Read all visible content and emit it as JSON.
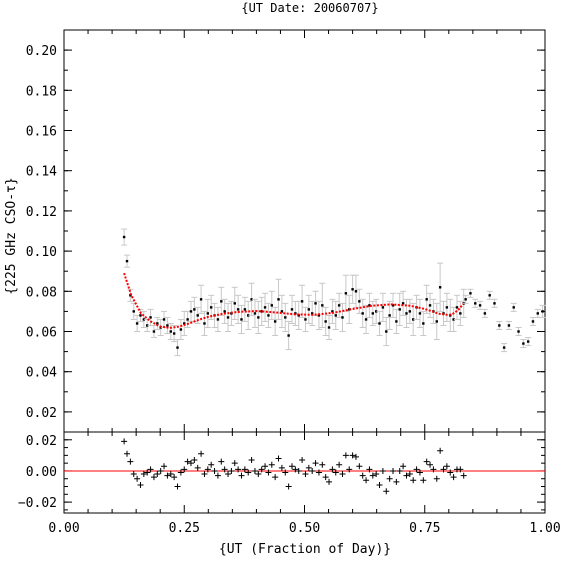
{
  "chart_data": [
    {
      "type": "scatter",
      "title": "{UT Date: 20060707}",
      "xlabel": "",
      "ylabel": "{225 GHz CSO-τ}",
      "xlim": [
        0.0,
        1.0
      ],
      "ylim": [
        0.01,
        0.21
      ],
      "yticks": [
        "0.02",
        "0.04",
        "0.06",
        "0.08",
        "0.10",
        "0.12",
        "0.14",
        "0.16",
        "0.18",
        "0.20"
      ],
      "grid": false,
      "colors": {
        "points": "#000000",
        "errorbars": "#c8c8c8",
        "fit": "#ff0000"
      },
      "series": [
        {
          "x": [
            0.125,
            0.131,
            0.138,
            0.145,
            0.152,
            0.159,
            0.166,
            0.173,
            0.18,
            0.187,
            0.194,
            0.201,
            0.208,
            0.215,
            0.222,
            0.229,
            0.236,
            0.243,
            0.25,
            0.257,
            0.264,
            0.271,
            0.278,
            0.285,
            0.292,
            0.299,
            0.306,
            0.313,
            0.32,
            0.327,
            0.334,
            0.341,
            0.348,
            0.355,
            0.362,
            0.369,
            0.376,
            0.383,
            0.39,
            0.397,
            0.404,
            0.411,
            0.418,
            0.425,
            0.432,
            0.439,
            0.446,
            0.453,
            0.46,
            0.467,
            0.474,
            0.481,
            0.488,
            0.495,
            0.502,
            0.509,
            0.516,
            0.523,
            0.53,
            0.537,
            0.544,
            0.551,
            0.558,
            0.565,
            0.572,
            0.579,
            0.586,
            0.593,
            0.6,
            0.607,
            0.614,
            0.621,
            0.628,
            0.635,
            0.642,
            0.649,
            0.656,
            0.663,
            0.67,
            0.677,
            0.684,
            0.691,
            0.698,
            0.705,
            0.712,
            0.719,
            0.726,
            0.733,
            0.74,
            0.747,
            0.754,
            0.761,
            0.768,
            0.775,
            0.782,
            0.789,
            0.796,
            0.803,
            0.81,
            0.817,
            0.824,
            0.831
          ],
          "y": [
            0.107,
            0.095,
            0.078,
            0.07,
            0.064,
            0.068,
            0.066,
            0.063,
            0.067,
            0.06,
            0.064,
            0.062,
            0.066,
            0.063,
            0.06,
            0.059,
            0.052,
            0.061,
            0.064,
            0.066,
            0.07,
            0.071,
            0.068,
            0.076,
            0.064,
            0.069,
            0.072,
            0.068,
            0.066,
            0.075,
            0.07,
            0.067,
            0.069,
            0.074,
            0.071,
            0.066,
            0.071,
            0.068,
            0.076,
            0.069,
            0.067,
            0.07,
            0.072,
            0.068,
            0.073,
            0.065,
            0.076,
            0.07,
            0.067,
            0.058,
            0.071,
            0.069,
            0.068,
            0.075,
            0.066,
            0.071,
            0.069,
            0.074,
            0.068,
            0.073,
            0.065,
            0.062,
            0.07,
            0.068,
            0.073,
            0.067,
            0.079,
            0.071,
            0.081,
            0.08,
            0.075,
            0.069,
            0.066,
            0.073,
            0.069,
            0.07,
            0.064,
            0.072,
            0.06,
            0.068,
            0.073,
            0.065,
            0.071,
            0.074,
            0.069,
            0.07,
            0.066,
            0.072,
            0.069,
            0.064,
            0.076,
            0.073,
            0.07,
            0.065,
            0.082,
            0.069,
            0.072,
            0.068,
            0.066,
            0.072,
            0.069,
            0.074
          ],
          "yerr": [
            0.004,
            0.003,
            0.003,
            0.004,
            0.004,
            0.003,
            0.004,
            0.003,
            0.004,
            0.003,
            0.003,
            0.004,
            0.004,
            0.004,
            0.004,
            0.004,
            0.004,
            0.005,
            0.006,
            0.004,
            0.005,
            0.006,
            0.004,
            0.007,
            0.006,
            0.007,
            0.006,
            0.006,
            0.006,
            0.007,
            0.006,
            0.007,
            0.006,
            0.008,
            0.007,
            0.007,
            0.006,
            0.007,
            0.008,
            0.007,
            0.008,
            0.007,
            0.007,
            0.006,
            0.007,
            0.007,
            0.01,
            0.008,
            0.007,
            0.007,
            0.007,
            0.006,
            0.007,
            0.008,
            0.006,
            0.007,
            0.006,
            0.006,
            0.007,
            0.011,
            0.007,
            0.006,
            0.006,
            0.007,
            0.006,
            0.007,
            0.009,
            0.007,
            0.007,
            0.008,
            0.006,
            0.007,
            0.007,
            0.006,
            0.006,
            0.006,
            0.006,
            0.007,
            0.007,
            0.007,
            0.006,
            0.006,
            0.008,
            0.006,
            0.007,
            0.006,
            0.008,
            0.006,
            0.007,
            0.006,
            0.007,
            0.006,
            0.006,
            0.009,
            0.012,
            0.006,
            0.007,
            0.008,
            0.006,
            0.006,
            0.006,
            0.007
          ]
        },
        {
          "x": [
            0.835,
            0.845,
            0.855,
            0.865,
            0.875,
            0.885,
            0.895,
            0.905,
            0.915,
            0.925,
            0.935,
            0.945,
            0.955,
            0.965,
            0.975,
            0.985,
            0.995
          ],
          "y": [
            0.076,
            0.079,
            0.074,
            0.073,
            0.069,
            0.078,
            0.074,
            0.063,
            0.052,
            0.063,
            0.072,
            0.06,
            0.054,
            0.055,
            0.065,
            0.069,
            0.07
          ],
          "yerr": [
            0.002,
            0.002,
            0.002,
            0.002,
            0.002,
            0.002,
            0.002,
            0.002,
            0.002,
            0.002,
            0.002,
            0.002,
            0.002,
            0.002,
            0.002,
            0.002,
            0.003
          ]
        }
      ],
      "fit": {
        "x": [
          0.125,
          0.14,
          0.16,
          0.18,
          0.2,
          0.22,
          0.24,
          0.26,
          0.28,
          0.3,
          0.33,
          0.36,
          0.4,
          0.44,
          0.48,
          0.52,
          0.56,
          0.6,
          0.64,
          0.68,
          0.72,
          0.75,
          0.78,
          0.8,
          0.81,
          0.82,
          0.83
        ],
        "y": [
          0.089,
          0.078,
          0.069,
          0.065,
          0.0625,
          0.0618,
          0.0625,
          0.064,
          0.0658,
          0.0673,
          0.0688,
          0.0697,
          0.0702,
          0.0695,
          0.0685,
          0.0683,
          0.0693,
          0.0712,
          0.0728,
          0.0735,
          0.0728,
          0.0712,
          0.0688,
          0.0682,
          0.069,
          0.0708,
          0.0737
        ]
      }
    },
    {
      "type": "scatter",
      "title": "",
      "xlabel": "{UT (Fraction of Day)}",
      "ylabel": "",
      "xlim": [
        0.0,
        1.0
      ],
      "ylim": [
        -0.027,
        0.025
      ],
      "xticks": [
        "0.00",
        "0.25",
        "0.50",
        "0.75",
        "1.00"
      ],
      "yticks": [
        "0.02",
        "0.00",
        "−0.02"
      ],
      "grid": false,
      "reference_line": 0.0,
      "colors": {
        "points": "#000000",
        "reference_line": "#ff0000"
      },
      "series": [
        {
          "x": [
            0.125,
            0.131,
            0.138,
            0.145,
            0.152,
            0.159,
            0.166,
            0.173,
            0.18,
            0.187,
            0.194,
            0.201,
            0.208,
            0.215,
            0.222,
            0.229,
            0.236,
            0.243,
            0.25,
            0.257,
            0.264,
            0.271,
            0.278,
            0.285,
            0.292,
            0.299,
            0.306,
            0.313,
            0.32,
            0.327,
            0.334,
            0.341,
            0.348,
            0.355,
            0.362,
            0.369,
            0.376,
            0.383,
            0.39,
            0.397,
            0.404,
            0.411,
            0.418,
            0.425,
            0.432,
            0.439,
            0.446,
            0.453,
            0.46,
            0.467,
            0.474,
            0.481,
            0.488,
            0.495,
            0.502,
            0.509,
            0.516,
            0.523,
            0.53,
            0.537,
            0.544,
            0.551,
            0.558,
            0.565,
            0.572,
            0.579,
            0.586,
            0.593,
            0.6,
            0.607,
            0.614,
            0.621,
            0.628,
            0.635,
            0.642,
            0.649,
            0.656,
            0.663,
            0.67,
            0.677,
            0.684,
            0.691,
            0.698,
            0.705,
            0.712,
            0.719,
            0.726,
            0.733,
            0.74,
            0.747,
            0.754,
            0.761,
            0.768,
            0.775,
            0.782,
            0.789,
            0.796,
            0.803,
            0.81,
            0.817,
            0.824,
            0.831
          ],
          "y": [
            0.019,
            0.011,
            0.006,
            -0.002,
            -0.005,
            -0.009,
            -0.002,
            -0.001,
            0.001,
            -0.004,
            -0.002,
            0.0,
            0.003,
            -0.003,
            -0.002,
            -0.004,
            -0.01,
            -0.001,
            0.001,
            0.006,
            0.005,
            0.007,
            0.002,
            0.011,
            -0.002,
            0.001,
            0.004,
            0.0,
            -0.003,
            0.006,
            0.001,
            -0.002,
            0.0,
            0.005,
            0.001,
            -0.003,
            0.001,
            -0.001,
            0.007,
            0.0,
            -0.002,
            0.001,
            0.003,
            -0.001,
            0.004,
            -0.004,
            0.008,
            0.002,
            -0.001,
            -0.01,
            0.003,
            0.001,
            0.0,
            0.007,
            -0.002,
            0.002,
            0.0,
            0.005,
            -0.001,
            0.004,
            -0.004,
            -0.007,
            0.001,
            -0.001,
            0.004,
            -0.002,
            0.01,
            0.001,
            0.01,
            0.009,
            0.003,
            -0.003,
            -0.006,
            0.001,
            -0.003,
            -0.002,
            -0.009,
            0.0,
            -0.013,
            -0.005,
            0.0,
            -0.007,
            0.0,
            0.003,
            -0.003,
            -0.002,
            -0.006,
            0.001,
            -0.001,
            -0.006,
            0.006,
            0.004,
            0.001,
            -0.005,
            0.013,
            0.001,
            0.003,
            -0.001,
            -0.004,
            0.001,
            0.001,
            -0.003
          ]
        }
      ]
    }
  ]
}
